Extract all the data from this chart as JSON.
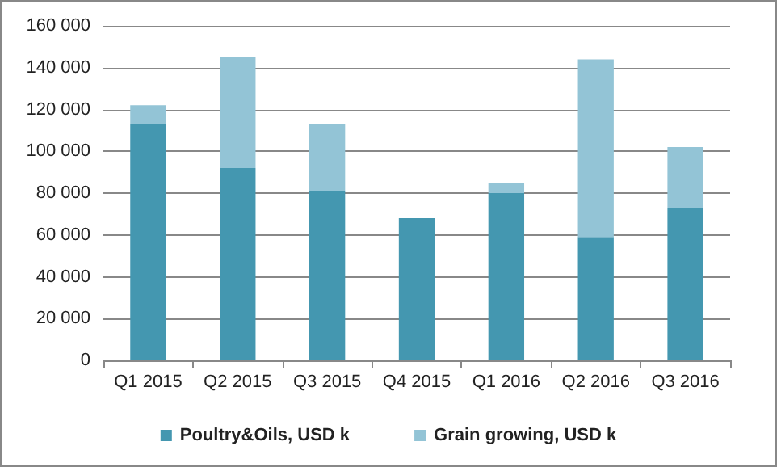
{
  "chart_data": {
    "type": "bar",
    "stacked": true,
    "categories": [
      "Q1 2015",
      "Q2 2015",
      "Q3 2015",
      "Q4 2015",
      "Q1 2016",
      "Q2 2016",
      "Q3 2016"
    ],
    "series": [
      {
        "name": "Poultry&Oils, USD k",
        "color": "#4497b0",
        "values": [
          113000,
          92000,
          81000,
          68000,
          80000,
          59000,
          73000
        ]
      },
      {
        "name": "Grain growing, USD k",
        "color": "#93c4d6",
        "values": [
          9000,
          53000,
          32000,
          0,
          5000,
          85000,
          29000
        ]
      }
    ],
    "ylim": [
      0,
      160000
    ],
    "yticks": [
      {
        "value": 0,
        "label": "0"
      },
      {
        "value": 20000,
        "label": "20 000"
      },
      {
        "value": 40000,
        "label": "40 000"
      },
      {
        "value": 60000,
        "label": "60 000"
      },
      {
        "value": 80000,
        "label": "80 000"
      },
      {
        "value": 100000,
        "label": "100 000"
      },
      {
        "value": 120000,
        "label": "120 000"
      },
      {
        "value": 140000,
        "label": "140 000"
      },
      {
        "value": 160000,
        "label": "160 000"
      }
    ],
    "grid": "y",
    "legend": "bottom"
  }
}
